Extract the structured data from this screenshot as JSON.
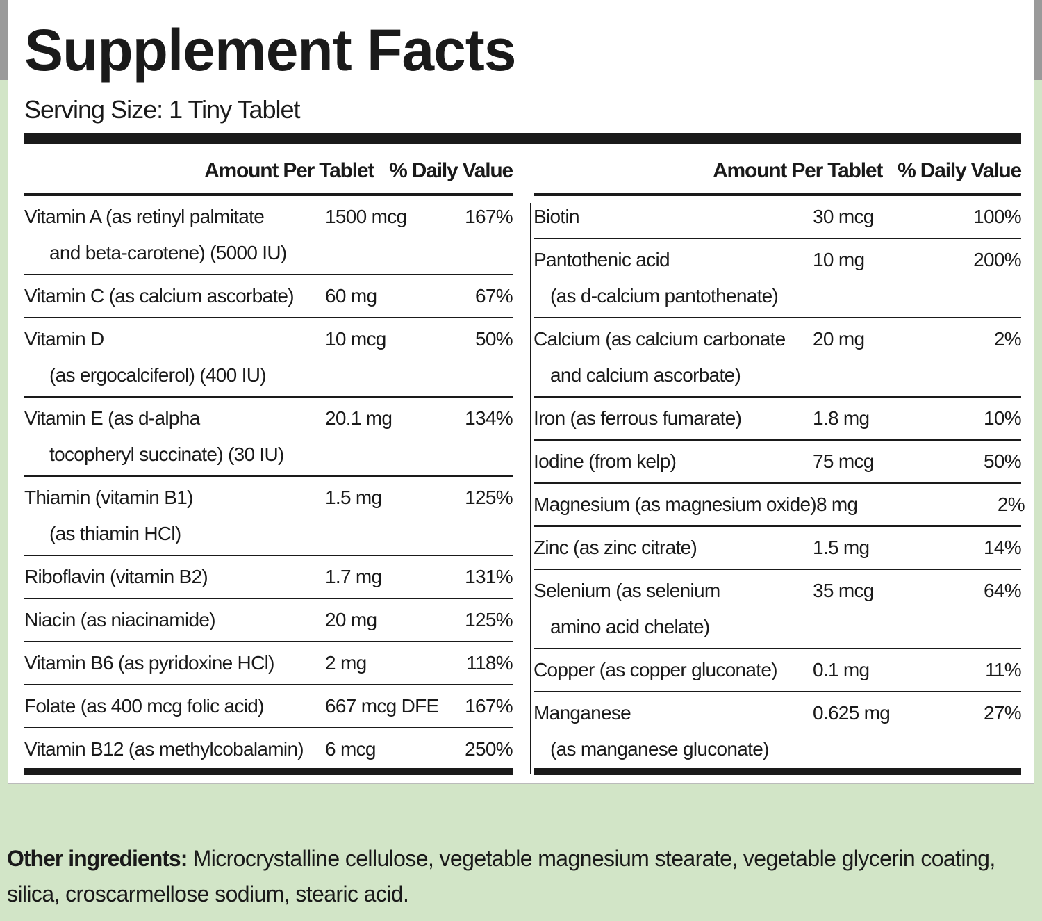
{
  "title": "Supplement Facts",
  "serving_size": "Serving Size: 1 Tiny Tablet",
  "left": {
    "headers": [
      "Amount Per Tablet",
      "% Daily Value"
    ],
    "rows": [
      {
        "name": "Vitamin A (as retinyl palmitate",
        "detail": "and beta-carotene) (5000 IU)",
        "amount": "1500 mcg",
        "dv": "167%"
      },
      {
        "name": "Vitamin C (as calcium ascorbate)",
        "amount": "60 mg",
        "dv": "67%"
      },
      {
        "name": "Vitamin D",
        "detail": "(as ergocalciferol) (400 IU)",
        "amount": "10 mcg",
        "dv": "50%"
      },
      {
        "name": "Vitamin E (as d-alpha",
        "detail": "tocopheryl succinate) (30 IU)",
        "amount": "20.1 mg",
        "dv": "134%"
      },
      {
        "name": "Thiamin (vitamin B1)",
        "detail": "(as thiamin HCl)",
        "amount": "1.5 mg",
        "dv": "125%"
      },
      {
        "name": "Riboflavin (vitamin B2)",
        "amount": "1.7 mg",
        "dv": "131%"
      },
      {
        "name": "Niacin (as niacinamide)",
        "amount": "20 mg",
        "dv": "125%"
      },
      {
        "name": "Vitamin B6 (as pyridoxine HCl)",
        "amount": "2 mg",
        "dv": "118%"
      },
      {
        "name": "Folate (as 400 mcg folic acid)",
        "amount": "667 mcg DFE",
        "dv": "167%"
      },
      {
        "name": "Vitamin B12 (as methylcobalamin)",
        "amount": "6 mcg",
        "dv": "250%"
      }
    ]
  },
  "right": {
    "headers": [
      "Amount Per Tablet",
      "% Daily Value"
    ],
    "rows": [
      {
        "name": "Biotin",
        "amount": "30 mcg",
        "dv": "100%"
      },
      {
        "name": "Pantothenic acid",
        "detail": "(as d-calcium pantothenate)",
        "amount": "10 mg",
        "dv": "200%"
      },
      {
        "name": "Calcium (as calcium carbonate",
        "detail": "and calcium ascorbate)",
        "amount": "20 mg",
        "dv": "2%"
      },
      {
        "name": "Iron (as ferrous fumarate)",
        "amount": "1.8 mg",
        "dv": "10%"
      },
      {
        "name": "Iodine (from kelp)",
        "amount": "75 mcg",
        "dv": "50%"
      },
      {
        "name": "Magnesium (as magnesium oxide)",
        "amount": "8 mg",
        "dv": "2%"
      },
      {
        "name": "Zinc (as zinc citrate)",
        "amount": "1.5 mg",
        "dv": "14%"
      },
      {
        "name": "Selenium (as selenium",
        "detail": "amino acid chelate)",
        "amount": "35 mcg",
        "dv": "64%"
      },
      {
        "name": "Copper (as copper gluconate)",
        "amount": "0.1 mg",
        "dv": "11%"
      },
      {
        "name": "Manganese",
        "detail": "(as manganese gluconate)",
        "amount": "0.625 mg",
        "dv": "27%"
      }
    ]
  },
  "other_ingredients": {
    "label": "Other ingredients:",
    "text": "Microcrystalline cellulose, vegetable magnesium stearate, vegetable glycerin coating, silica, croscarmellose sodium, stearic acid."
  }
}
